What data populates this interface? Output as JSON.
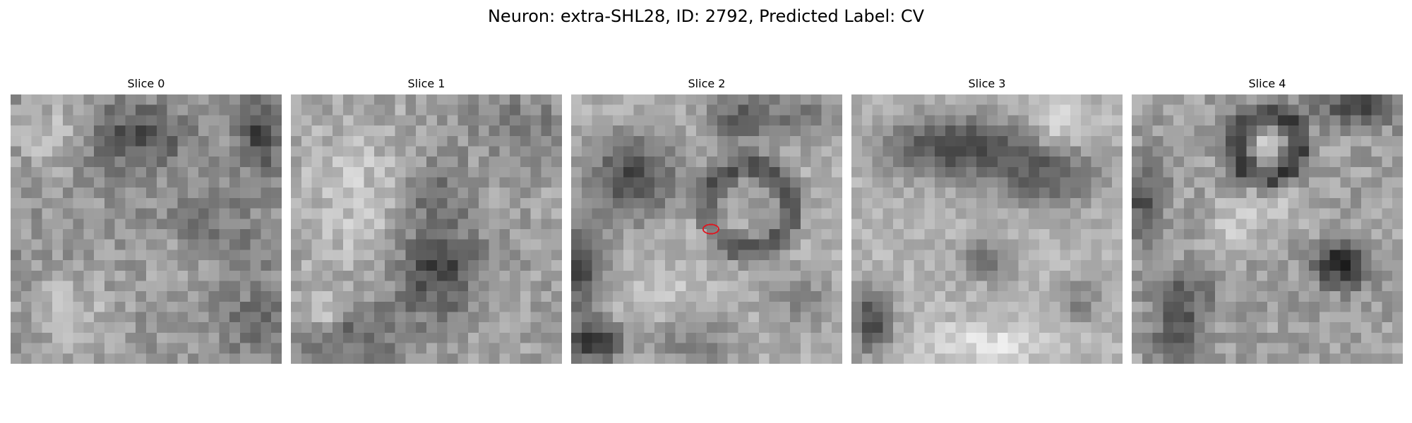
{
  "figure": {
    "title": "Neuron: extra-SHL28, ID: 2792, Predicted Label: CV"
  },
  "panels": [
    {
      "title": "Slice 0"
    },
    {
      "title": "Slice 1"
    },
    {
      "title": "Slice 2",
      "marker_color": "#e0141e"
    },
    {
      "title": "Slice 3"
    },
    {
      "title": "Slice 4"
    }
  ],
  "colormap": "gray"
}
